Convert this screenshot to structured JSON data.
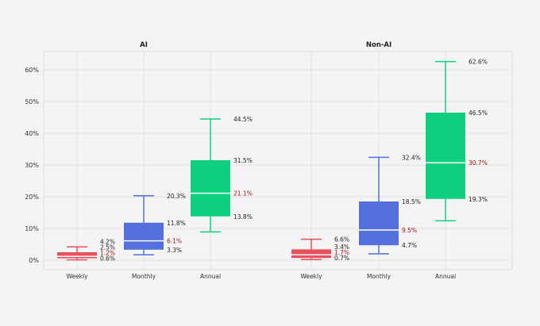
{
  "chart_data": {
    "type": "box",
    "ylim": [
      -3,
      65.75
    ],
    "yticks": [
      0,
      10,
      20,
      30,
      40,
      50,
      60
    ],
    "ytick_labels": [
      "0%",
      "10%",
      "20%",
      "30%",
      "40%",
      "50%",
      "60%"
    ],
    "grid": true,
    "colors": {
      "Weekly": "#e8505b",
      "Monthly": "#5470dc",
      "Annual": "#10d07f",
      "median_label": "#a01010",
      "text": "#222222",
      "grid": "#dddddd"
    },
    "panels": [
      {
        "title": "AI",
        "boxes": [
          {
            "category": "Weekly",
            "whisker_low": 0.1,
            "q1": 0.6,
            "median": 1.2,
            "q3": 2.5,
            "whisker_high": 4.2,
            "labels": {
              "whisker_high": "4.2%",
              "q3": "2.5%",
              "median": "1.2%",
              "q1": "0.6%"
            }
          },
          {
            "category": "Monthly",
            "whisker_low": 1.7,
            "q1": 3.3,
            "median": 6.1,
            "q3": 11.8,
            "whisker_high": 20.3,
            "labels": {
              "whisker_high": "20.3%",
              "q3": "11.8%",
              "median": "6.1%",
              "q1": "3.3%"
            }
          },
          {
            "category": "Annual",
            "whisker_low": 8.9,
            "q1": 13.8,
            "median": 21.1,
            "q3": 31.5,
            "whisker_high": 44.5,
            "labels": {
              "whisker_high": "44.5%",
              "q3": "31.5%",
              "median": "21.1%",
              "q1": "13.8%"
            }
          }
        ]
      },
      {
        "title": "Non-AI",
        "boxes": [
          {
            "category": "Weekly",
            "whisker_low": 0.2,
            "q1": 0.7,
            "median": 1.7,
            "q3": 3.4,
            "whisker_high": 6.6,
            "labels": {
              "whisker_high": "6.6%",
              "q3": "3.4%",
              "median": "1.7%",
              "q1": "0.7%"
            }
          },
          {
            "category": "Monthly",
            "whisker_low": 2.0,
            "q1": 4.7,
            "median": 9.5,
            "q3": 18.5,
            "whisker_high": 32.4,
            "labels": {
              "whisker_high": "32.4%",
              "q3": "18.5%",
              "median": "9.5%",
              "q1": "4.7%"
            }
          },
          {
            "category": "Annual",
            "whisker_low": 12.4,
            "q1": 19.3,
            "median": 30.7,
            "q3": 46.5,
            "whisker_high": 62.6,
            "labels": {
              "whisker_high": "62.6%",
              "q3": "46.5%",
              "median": "30.7%",
              "q1": "19.3%"
            }
          }
        ]
      }
    ]
  }
}
